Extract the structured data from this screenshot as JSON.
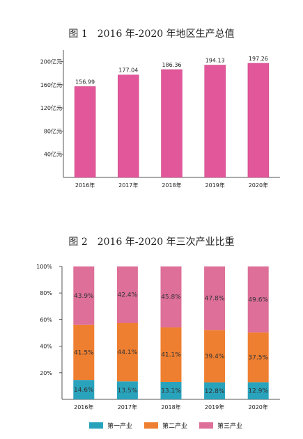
{
  "chart_data": [
    {
      "type": "bar",
      "title": "图 1　2016 年-2020 年地区生产总值",
      "categories": [
        "2016年",
        "2017年",
        "2018年",
        "2019年",
        "2020年"
      ],
      "values": [
        156.99,
        177.04,
        186.36,
        194.13,
        197.26
      ],
      "value_labels": [
        "156.99",
        "177.04",
        "186.36",
        "194.13",
        "197.26"
      ],
      "yticks": [
        40,
        80,
        120,
        160,
        200
      ],
      "ytick_labels": [
        "40亿元",
        "80亿元",
        "120亿元",
        "160亿元",
        "200亿元"
      ],
      "ylim": [
        0,
        220
      ],
      "grid": false,
      "color": "#e2579a"
    },
    {
      "type": "bar",
      "stacked": true,
      "percent": true,
      "title": "图 2　2016 年-2020 年三次产业比重",
      "categories": [
        "2016年",
        "2017年",
        "2018年",
        "2019年",
        "2020年"
      ],
      "series": [
        {
          "name": "第一产业",
          "values": [
            14.6,
            13.5,
            13.1,
            12.8,
            12.9
          ],
          "labels": [
            "14.6%",
            "13.5%",
            "13.1%",
            "12.8%",
            "12.9%"
          ],
          "color": "#29a3bc"
        },
        {
          "name": "第二产业",
          "values": [
            41.5,
            44.1,
            41.1,
            39.4,
            37.5
          ],
          "labels": [
            "41.5%",
            "44.1%",
            "41.1%",
            "39.4%",
            "37.5%"
          ],
          "color": "#ef7f30"
        },
        {
          "name": "第三产业",
          "values": [
            43.9,
            42.4,
            45.8,
            47.8,
            49.6
          ],
          "labels": [
            "43.9%",
            "42.4%",
            "45.8%",
            "47.8%",
            "49.6%"
          ],
          "color": "#dd6f98"
        }
      ],
      "yticks": [
        20,
        40,
        60,
        80,
        100
      ],
      "ytick_labels": [
        "20%",
        "40%",
        "60%",
        "80%",
        "100%"
      ],
      "ylim": [
        0,
        100
      ],
      "grid": false,
      "legend_position": "bottom"
    }
  ]
}
